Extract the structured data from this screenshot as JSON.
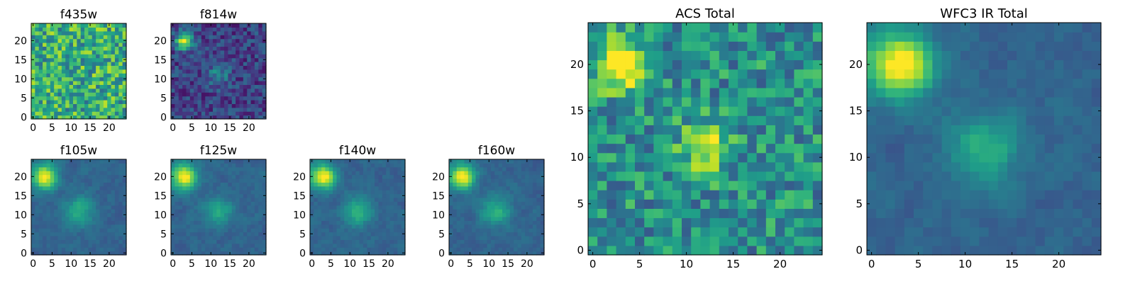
{
  "chart_data": [
    {
      "type": "heatmap",
      "title": "f435w",
      "colormap": "viridis",
      "grid": false,
      "xlim": [
        -0.5,
        24.5
      ],
      "ylim": [
        -0.5,
        24.5
      ],
      "xticks": [
        0,
        5,
        10,
        15,
        20
      ],
      "yticks": [
        0,
        5,
        10,
        15,
        20
      ],
      "texture": "noise-dominated, mostly yellow-green",
      "sources": []
    },
    {
      "type": "heatmap",
      "title": "f814w",
      "colormap": "viridis",
      "grid": false,
      "xlim": [
        -0.5,
        24.5
      ],
      "ylim": [
        -0.5,
        24.5
      ],
      "xticks": [
        0,
        5,
        10,
        15,
        20
      ],
      "yticks": [
        0,
        5,
        10,
        15,
        20
      ],
      "texture": "dark blue background with noise",
      "sources": [
        {
          "x": 3,
          "y": 20,
          "peak": 1.0,
          "sigma": 1.6
        },
        {
          "x": 12,
          "y": 11,
          "peak": 0.35,
          "sigma": 2.0
        }
      ]
    },
    {
      "type": "heatmap",
      "title": "f105w",
      "colormap": "viridis",
      "grid": false,
      "xlim": [
        -0.5,
        24.5
      ],
      "ylim": [
        -0.5,
        24.5
      ],
      "xticks": [
        0,
        5,
        10,
        15,
        20
      ],
      "yticks": [
        0,
        5,
        10,
        15,
        20
      ],
      "texture": "smooth blue-green",
      "sources": [
        {
          "x": 3,
          "y": 20,
          "peak": 1.0,
          "sigma": 2.2
        },
        {
          "x": 12,
          "y": 11,
          "peak": 0.45,
          "sigma": 2.6
        }
      ]
    },
    {
      "type": "heatmap",
      "title": "f125w",
      "colormap": "viridis",
      "grid": false,
      "xlim": [
        -0.5,
        24.5
      ],
      "ylim": [
        -0.5,
        24.5
      ],
      "xticks": [
        0,
        5,
        10,
        15,
        20
      ],
      "yticks": [
        0,
        5,
        10,
        15,
        20
      ],
      "texture": "smooth blue-green",
      "sources": [
        {
          "x": 3,
          "y": 20,
          "peak": 1.0,
          "sigma": 2.2
        },
        {
          "x": 12,
          "y": 11,
          "peak": 0.4,
          "sigma": 2.6
        }
      ]
    },
    {
      "type": "heatmap",
      "title": "f140w",
      "colormap": "viridis",
      "grid": false,
      "xlim": [
        -0.5,
        24.5
      ],
      "ylim": [
        -0.5,
        24.5
      ],
      "xticks": [
        0,
        5,
        10,
        15,
        20
      ],
      "yticks": [
        0,
        5,
        10,
        15,
        20
      ],
      "texture": "smooth blue-green",
      "sources": [
        {
          "x": 3,
          "y": 20,
          "peak": 1.0,
          "sigma": 2.2
        },
        {
          "x": 12,
          "y": 11,
          "peak": 0.45,
          "sigma": 2.6
        }
      ]
    },
    {
      "type": "heatmap",
      "title": "f160w",
      "colormap": "viridis",
      "grid": false,
      "xlim": [
        -0.5,
        24.5
      ],
      "ylim": [
        -0.5,
        24.5
      ],
      "xticks": [
        0,
        5,
        10,
        15,
        20
      ],
      "yticks": [
        0,
        5,
        10,
        15,
        20
      ],
      "texture": "smooth blue-green",
      "sources": [
        {
          "x": 3,
          "y": 20,
          "peak": 1.0,
          "sigma": 2.2
        },
        {
          "x": 12,
          "y": 11,
          "peak": 0.45,
          "sigma": 2.6
        }
      ]
    },
    {
      "type": "heatmap",
      "title": "ACS Total",
      "colormap": "viridis",
      "grid": false,
      "xlim": [
        -0.5,
        24.5
      ],
      "ylim": [
        -0.5,
        24.5
      ],
      "xticks": [
        0,
        5,
        10,
        15,
        20
      ],
      "yticks": [
        0,
        5,
        10,
        15,
        20
      ],
      "texture": "noisy green background",
      "sources": [
        {
          "x": 3,
          "y": 20,
          "peak": 1.0,
          "sigma": 1.8
        },
        {
          "x": 12,
          "y": 11,
          "peak": 0.6,
          "sigma": 1.8
        }
      ]
    },
    {
      "type": "heatmap",
      "title": "WFC3 IR Total",
      "colormap": "viridis",
      "grid": false,
      "xlim": [
        -0.5,
        24.5
      ],
      "ylim": [
        -0.5,
        24.5
      ],
      "xticks": [
        0,
        5,
        10,
        15,
        20
      ],
      "yticks": [
        0,
        5,
        10,
        15,
        20
      ],
      "texture": "smooth blue background",
      "sources": [
        {
          "x": 3,
          "y": 20,
          "peak": 1.0,
          "sigma": 2.4
        },
        {
          "x": 12,
          "y": 11,
          "peak": 0.45,
          "sigma": 2.6
        }
      ]
    }
  ]
}
